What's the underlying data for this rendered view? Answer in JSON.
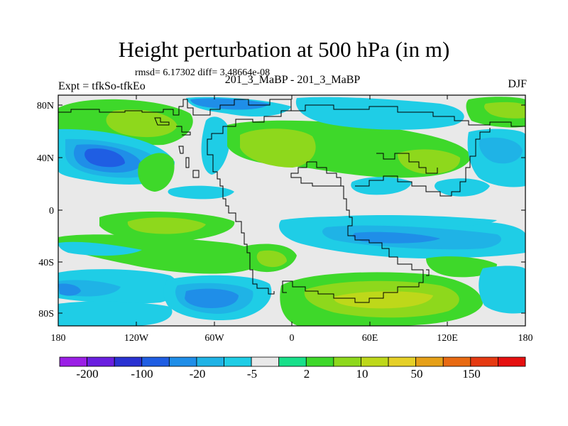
{
  "title": "Height perturbation at 500 hPa (in m)",
  "stats": "rmsd= 6.17302 diff= 3.48664e-08",
  "subtitle_left": "Expt = tfkSo-tfkEo",
  "subtitle_center": "201_3_MaBP - 201_3_MaBP",
  "subtitle_right": "DJF",
  "axes": {
    "y_ticks": [
      "80N",
      "40N",
      "0",
      "40S",
      "80S"
    ],
    "x_ticks": [
      "180",
      "120W",
      "60W",
      "0",
      "60E",
      "120E",
      "180"
    ]
  },
  "colorbar": {
    "labels": [
      "-200",
      "-100",
      "-20",
      "-5",
      "2",
      "10",
      "50",
      "150"
    ],
    "colors": [
      "#9b1fe6",
      "#6a1fe0",
      "#2a32d2",
      "#1f5ee3",
      "#1f8ee8",
      "#1fb3e6",
      "#1fcde6",
      "#e9e9e9",
      "#18e08a",
      "#3ed82a",
      "#8ed81c",
      "#bed81a",
      "#e6d028",
      "#e6a018",
      "#e86a12",
      "#e63a12",
      "#e61010"
    ]
  },
  "chart_data": {
    "type": "heatmap",
    "title": "Height perturbation at 500 hPa (in m)",
    "variable": "500 hPa height perturbation",
    "units": "m",
    "season": "DJF",
    "x_range": [
      -180,
      180
    ],
    "y_range": [
      -90,
      90
    ],
    "contour_levels": [
      -200,
      -150,
      -100,
      -50,
      -20,
      -10,
      -5,
      -2,
      2,
      5,
      10,
      20,
      50,
      100,
      150,
      200
    ]
  }
}
